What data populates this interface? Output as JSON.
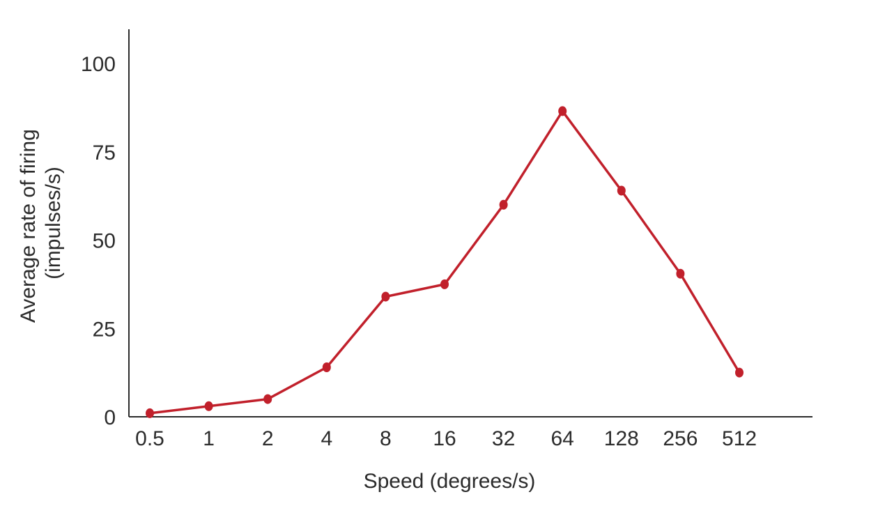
{
  "chart_data": {
    "type": "line",
    "x": [
      "0.5",
      "1",
      "2",
      "4",
      "8",
      "16",
      "32",
      "64",
      "128",
      "256",
      "512"
    ],
    "y_ticks": [
      "0",
      "25",
      "50",
      "75",
      "100"
    ],
    "series": [
      {
        "values": [
          1,
          3,
          5,
          14,
          34,
          37.5,
          60,
          86.5,
          64,
          40.5,
          12.5
        ]
      }
    ],
    "xlabel": "Speed (degrees/s)",
    "ylabel": [
      "Average rate of firing",
      "(impulses/s)"
    ],
    "ylim": [
      0,
      110
    ],
    "grid": false,
    "legend": "none",
    "colors": {
      "series": "#c1202b",
      "axis": "#2b2b2b",
      "text": "#2b2b2b"
    }
  }
}
